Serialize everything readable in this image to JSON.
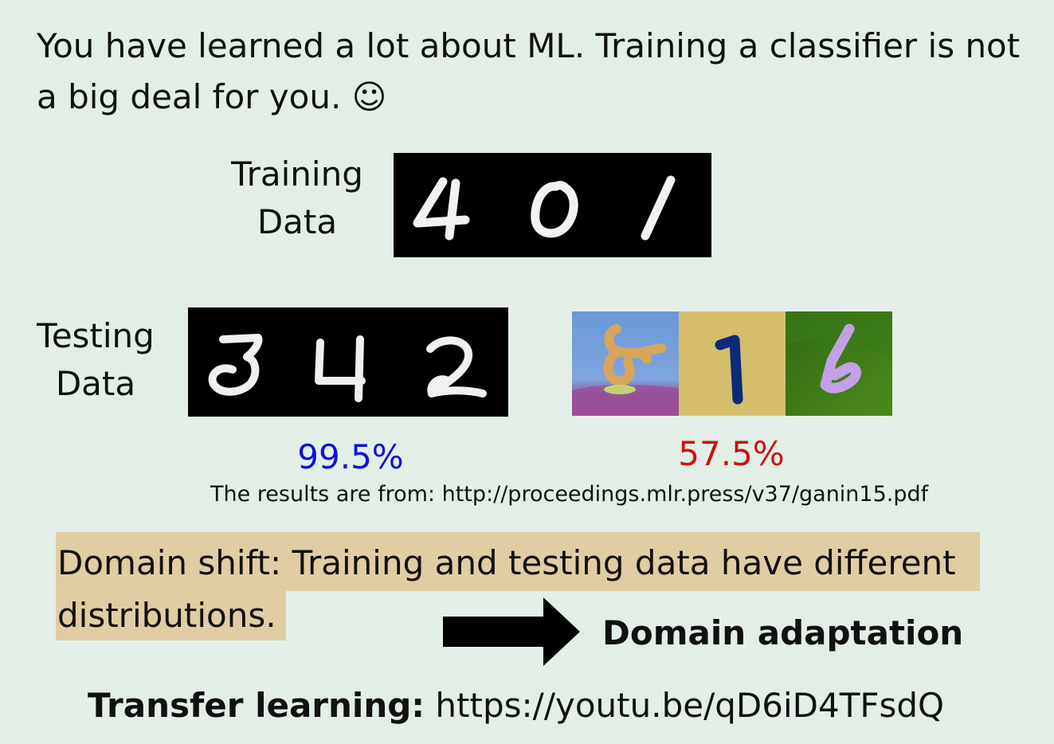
{
  "intro_text": "You have learned a lot about ML. Training a classifier is not a big deal for you. ☺",
  "training_label_line1": "Training",
  "training_label_line2": "Data",
  "testing_label_line1": "Testing",
  "testing_label_line2": "Data",
  "accuracy_mnist": "99.5%",
  "accuracy_mnistm": "57.5%",
  "source_note": "The results are from: http://proceedings.mlr.press/v37/ganin15.pdf",
  "domain_shift_text": "Domain shift: Training and testing data have different distributions.",
  "domain_adaptation_label": "Domain adaptation",
  "transfer_label": "Transfer learning:",
  "transfer_url": " https://youtu.be/qD6iD4TFsdQ",
  "colors": {
    "background": "#e3efe6",
    "highlight": "#e0cda1",
    "accuracy_high": "#1010e0",
    "accuracy_low": "#d01010"
  }
}
